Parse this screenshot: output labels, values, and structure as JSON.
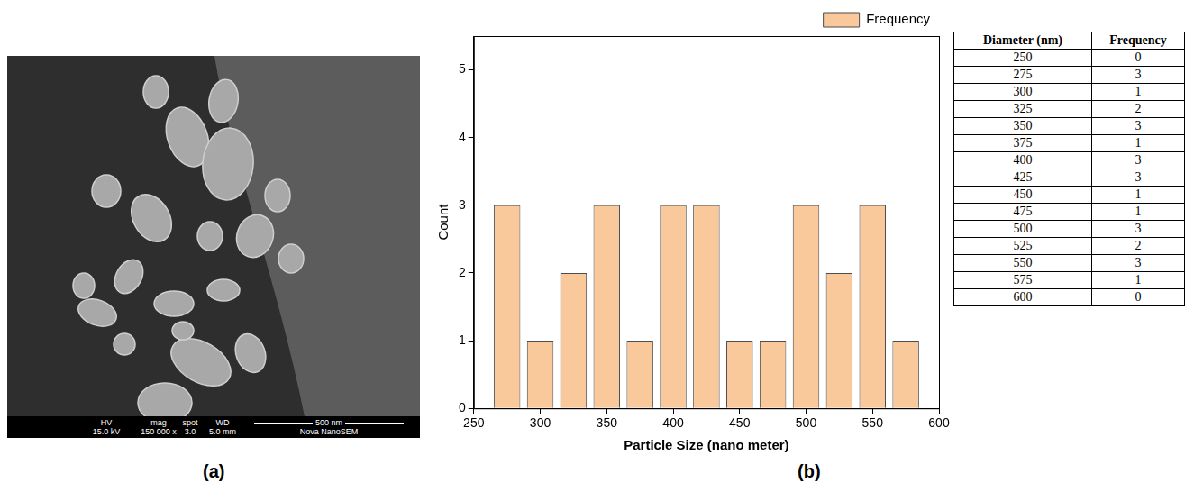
{
  "chart_data": {
    "type": "bar",
    "x": [
      275,
      300,
      325,
      350,
      375,
      400,
      425,
      450,
      475,
      500,
      525,
      550,
      575
    ],
    "series": [
      {
        "name": "Frequency",
        "color": "#f9c99c",
        "values": [
          3,
          1,
          2,
          3,
          1,
          3,
          3,
          1,
          1,
          3,
          2,
          3,
          1
        ]
      }
    ],
    "x_label": "Particle Size (nano meter)",
    "y_label": "Count",
    "xlim": [
      250,
      600
    ],
    "xticks": [
      250,
      300,
      350,
      400,
      450,
      500,
      550,
      600
    ],
    "ylim": [
      0,
      5.5
    ],
    "yticks": [
      0,
      1,
      2,
      3,
      4,
      5
    ],
    "grid": false,
    "legend": "top right"
  },
  "table": {
    "header": [
      "Diameter (nm)",
      "Frequency"
    ],
    "rows": [
      [
        250,
        0
      ],
      [
        275,
        3
      ],
      [
        300,
        1
      ],
      [
        325,
        2
      ],
      [
        350,
        3
      ],
      [
        375,
        1
      ],
      [
        400,
        3
      ],
      [
        425,
        3
      ],
      [
        450,
        1
      ],
      [
        475,
        1
      ],
      [
        500,
        3
      ],
      [
        525,
        2
      ],
      [
        550,
        3
      ],
      [
        575,
        1
      ],
      [
        600,
        0
      ]
    ]
  },
  "image": {
    "info_bar": [
      {
        "label": "HV",
        "value": "15.0 kV"
      },
      {
        "label": "mag",
        "value": "150 000 x"
      },
      {
        "label": "spot",
        "value": "3.0"
      },
      {
        "label": "WD",
        "value": "5.0 mm"
      }
    ],
    "scale_bar": "500 nm",
    "instrument": "Nova NanoSEM"
  },
  "panel_labels": [
    "(a)",
    "(b)"
  ]
}
